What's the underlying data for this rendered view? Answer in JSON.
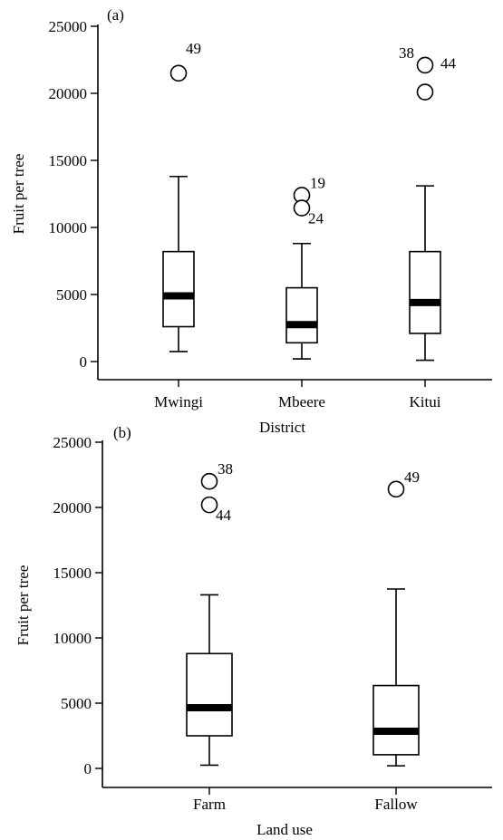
{
  "chart_data": [
    {
      "type": "box",
      "panel_label": "(a)",
      "xlabel": "District",
      "ylabel": "Fruit per tree",
      "ylim": [
        0,
        25000
      ],
      "yticks": [
        0,
        5000,
        10000,
        15000,
        20000,
        25000
      ],
      "categories": [
        "Mwingi",
        "Mbeere",
        "Kitui"
      ],
      "boxes": [
        {
          "category": "Mwingi",
          "min": 750,
          "q1": 2600,
          "median": 4900,
          "q3": 8200,
          "max": 13800,
          "outliers": [
            {
              "value": 21500,
              "label": "49",
              "label_side": "above"
            }
          ]
        },
        {
          "category": "Mbeere",
          "min": 200,
          "q1": 1400,
          "median": 2750,
          "q3": 5500,
          "max": 8800,
          "outliers": [
            {
              "value": 12400,
              "label": "19",
              "label_side": "right-up"
            },
            {
              "value": 11450,
              "label": "24",
              "label_side": "right-down"
            }
          ]
        },
        {
          "category": "Kitui",
          "min": 100,
          "q1": 2100,
          "median": 4400,
          "q3": 8200,
          "max": 13100,
          "outliers": [
            {
              "value": 22100,
              "label": "38",
              "label_side": "left"
            },
            {
              "value": 20100,
              "label": "44",
              "label_side": "right-of-upper"
            }
          ]
        }
      ]
    },
    {
      "type": "box",
      "panel_label": "(b)",
      "xlabel": "Land use",
      "ylabel": "Fruit per tree",
      "ylim": [
        0,
        25000
      ],
      "yticks": [
        0,
        5000,
        10000,
        15000,
        20000,
        25000
      ],
      "categories": [
        "Farm",
        "Fallow"
      ],
      "boxes": [
        {
          "category": "Farm",
          "min": 250,
          "q1": 2500,
          "median": 4650,
          "q3": 8800,
          "max": 13300,
          "outliers": [
            {
              "value": 22000,
              "label": "38",
              "label_side": "right-up"
            },
            {
              "value": 20200,
              "label": "44",
              "label_side": "right-down"
            }
          ]
        },
        {
          "category": "Fallow",
          "min": 200,
          "q1": 1050,
          "median": 2850,
          "q3": 6350,
          "max": 13750,
          "outliers": [
            {
              "value": 21400,
              "label": "49",
              "label_side": "right-up"
            }
          ]
        }
      ]
    }
  ]
}
